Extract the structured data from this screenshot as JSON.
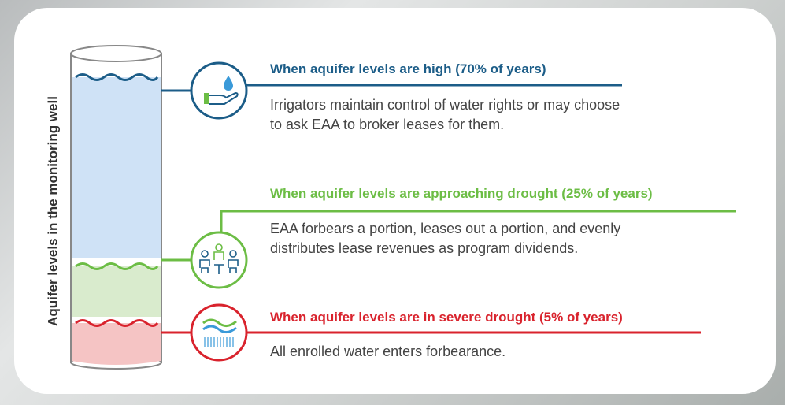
{
  "axis_label": "Aquifer levels in the monitoring well",
  "levels": [
    {
      "title": "When aquifer levels are high (70% of years)",
      "description": "Irrigators maintain control of water rights or may choose to ask EAA to broker leases for them."
    },
    {
      "title": "When aquifer levels are approaching drought (25% of years)",
      "description": "EAA forbears a portion, leases out a portion, and evenly distributes lease revenues as program dividends."
    },
    {
      "title": "When aquifer levels are in severe drought (5% of years)",
      "description": "All enrolled water enters forbearance."
    }
  ]
}
